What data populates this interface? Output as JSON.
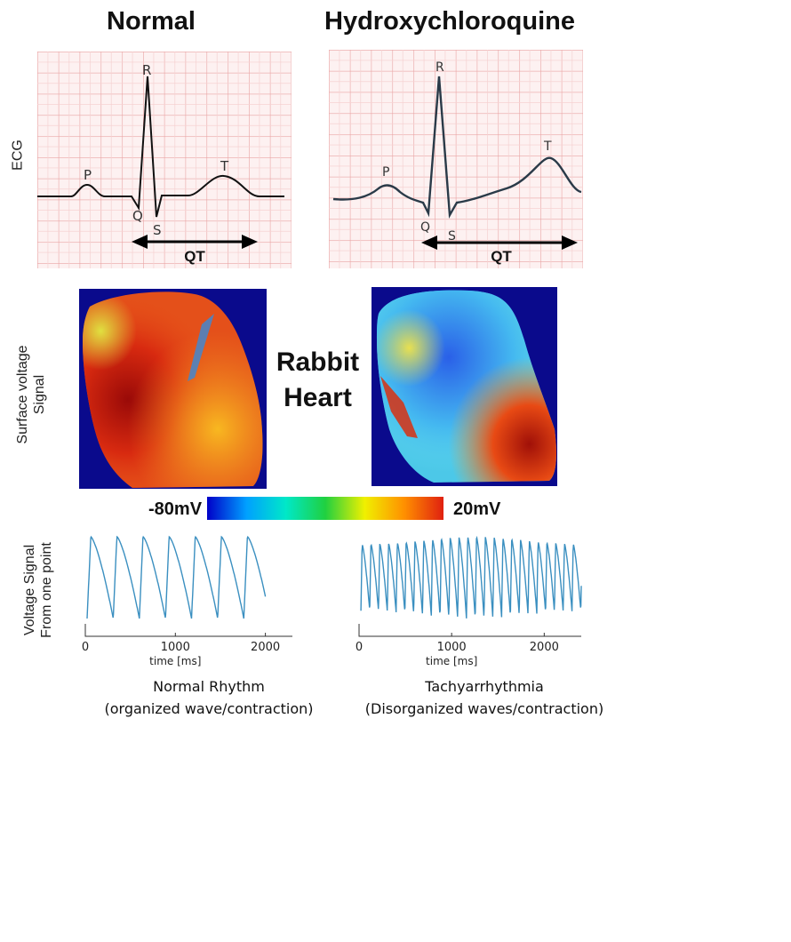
{
  "titles": {
    "left": "Normal",
    "right": "Hydroxychloroquine"
  },
  "row_labels": {
    "ecg": "ECG",
    "surface_line1": "Surface voltage",
    "surface_line2": "Signal",
    "voltage_line1": "Voltage  Signal",
    "voltage_line2": "From one point"
  },
  "ecg_labels": {
    "p": "P",
    "q": "Q",
    "r": "R",
    "s": "S",
    "t": "T",
    "qt": "QT"
  },
  "center_label": {
    "line1": "Rabbit",
    "line2": "Heart"
  },
  "colorbar": {
    "min_label": "-80mV",
    "max_label": "20mV",
    "colors": [
      "#0000c8",
      "#00a0ff",
      "#00e8c8",
      "#20d040",
      "#f0f000",
      "#ff9000",
      "#e02010"
    ]
  },
  "chart_data": [
    {
      "type": "line",
      "name": "normal-rhythm",
      "xlabel": "time [ms]",
      "ylabel": "",
      "xlim": [
        0,
        2300
      ],
      "x_ticks": [
        0,
        1000,
        2000
      ],
      "tick_labels": [
        "0",
        "1000",
        "2000"
      ],
      "series": [
        {
          "name": "voltage",
          "color": "#3a8fc0",
          "beats": 7,
          "period_ms": 290,
          "start_ms": 20,
          "end_ms": 2000,
          "amplitude": 1.0
        }
      ],
      "caption_line1": "Normal Rhythm",
      "caption_line2": "(organized wave/contraction)"
    },
    {
      "type": "line",
      "name": "tachyarrhythmia",
      "xlabel": "time [ms]",
      "ylabel": "",
      "xlim": [
        0,
        2400
      ],
      "x_ticks": [
        0,
        1000,
        2000
      ],
      "tick_labels": [
        "0",
        "1000",
        "2000"
      ],
      "series": [
        {
          "name": "voltage",
          "color": "#3a8fc0",
          "period_ms": 95,
          "start_ms": 20,
          "end_ms": 2400,
          "amplitude": 0.8,
          "amplitude_peak": 1.0,
          "peak_time_ms": 1250
        }
      ],
      "caption_line1": "Tachyarrhythmia",
      "caption_line2": "(Disorganized waves/contraction)"
    }
  ]
}
